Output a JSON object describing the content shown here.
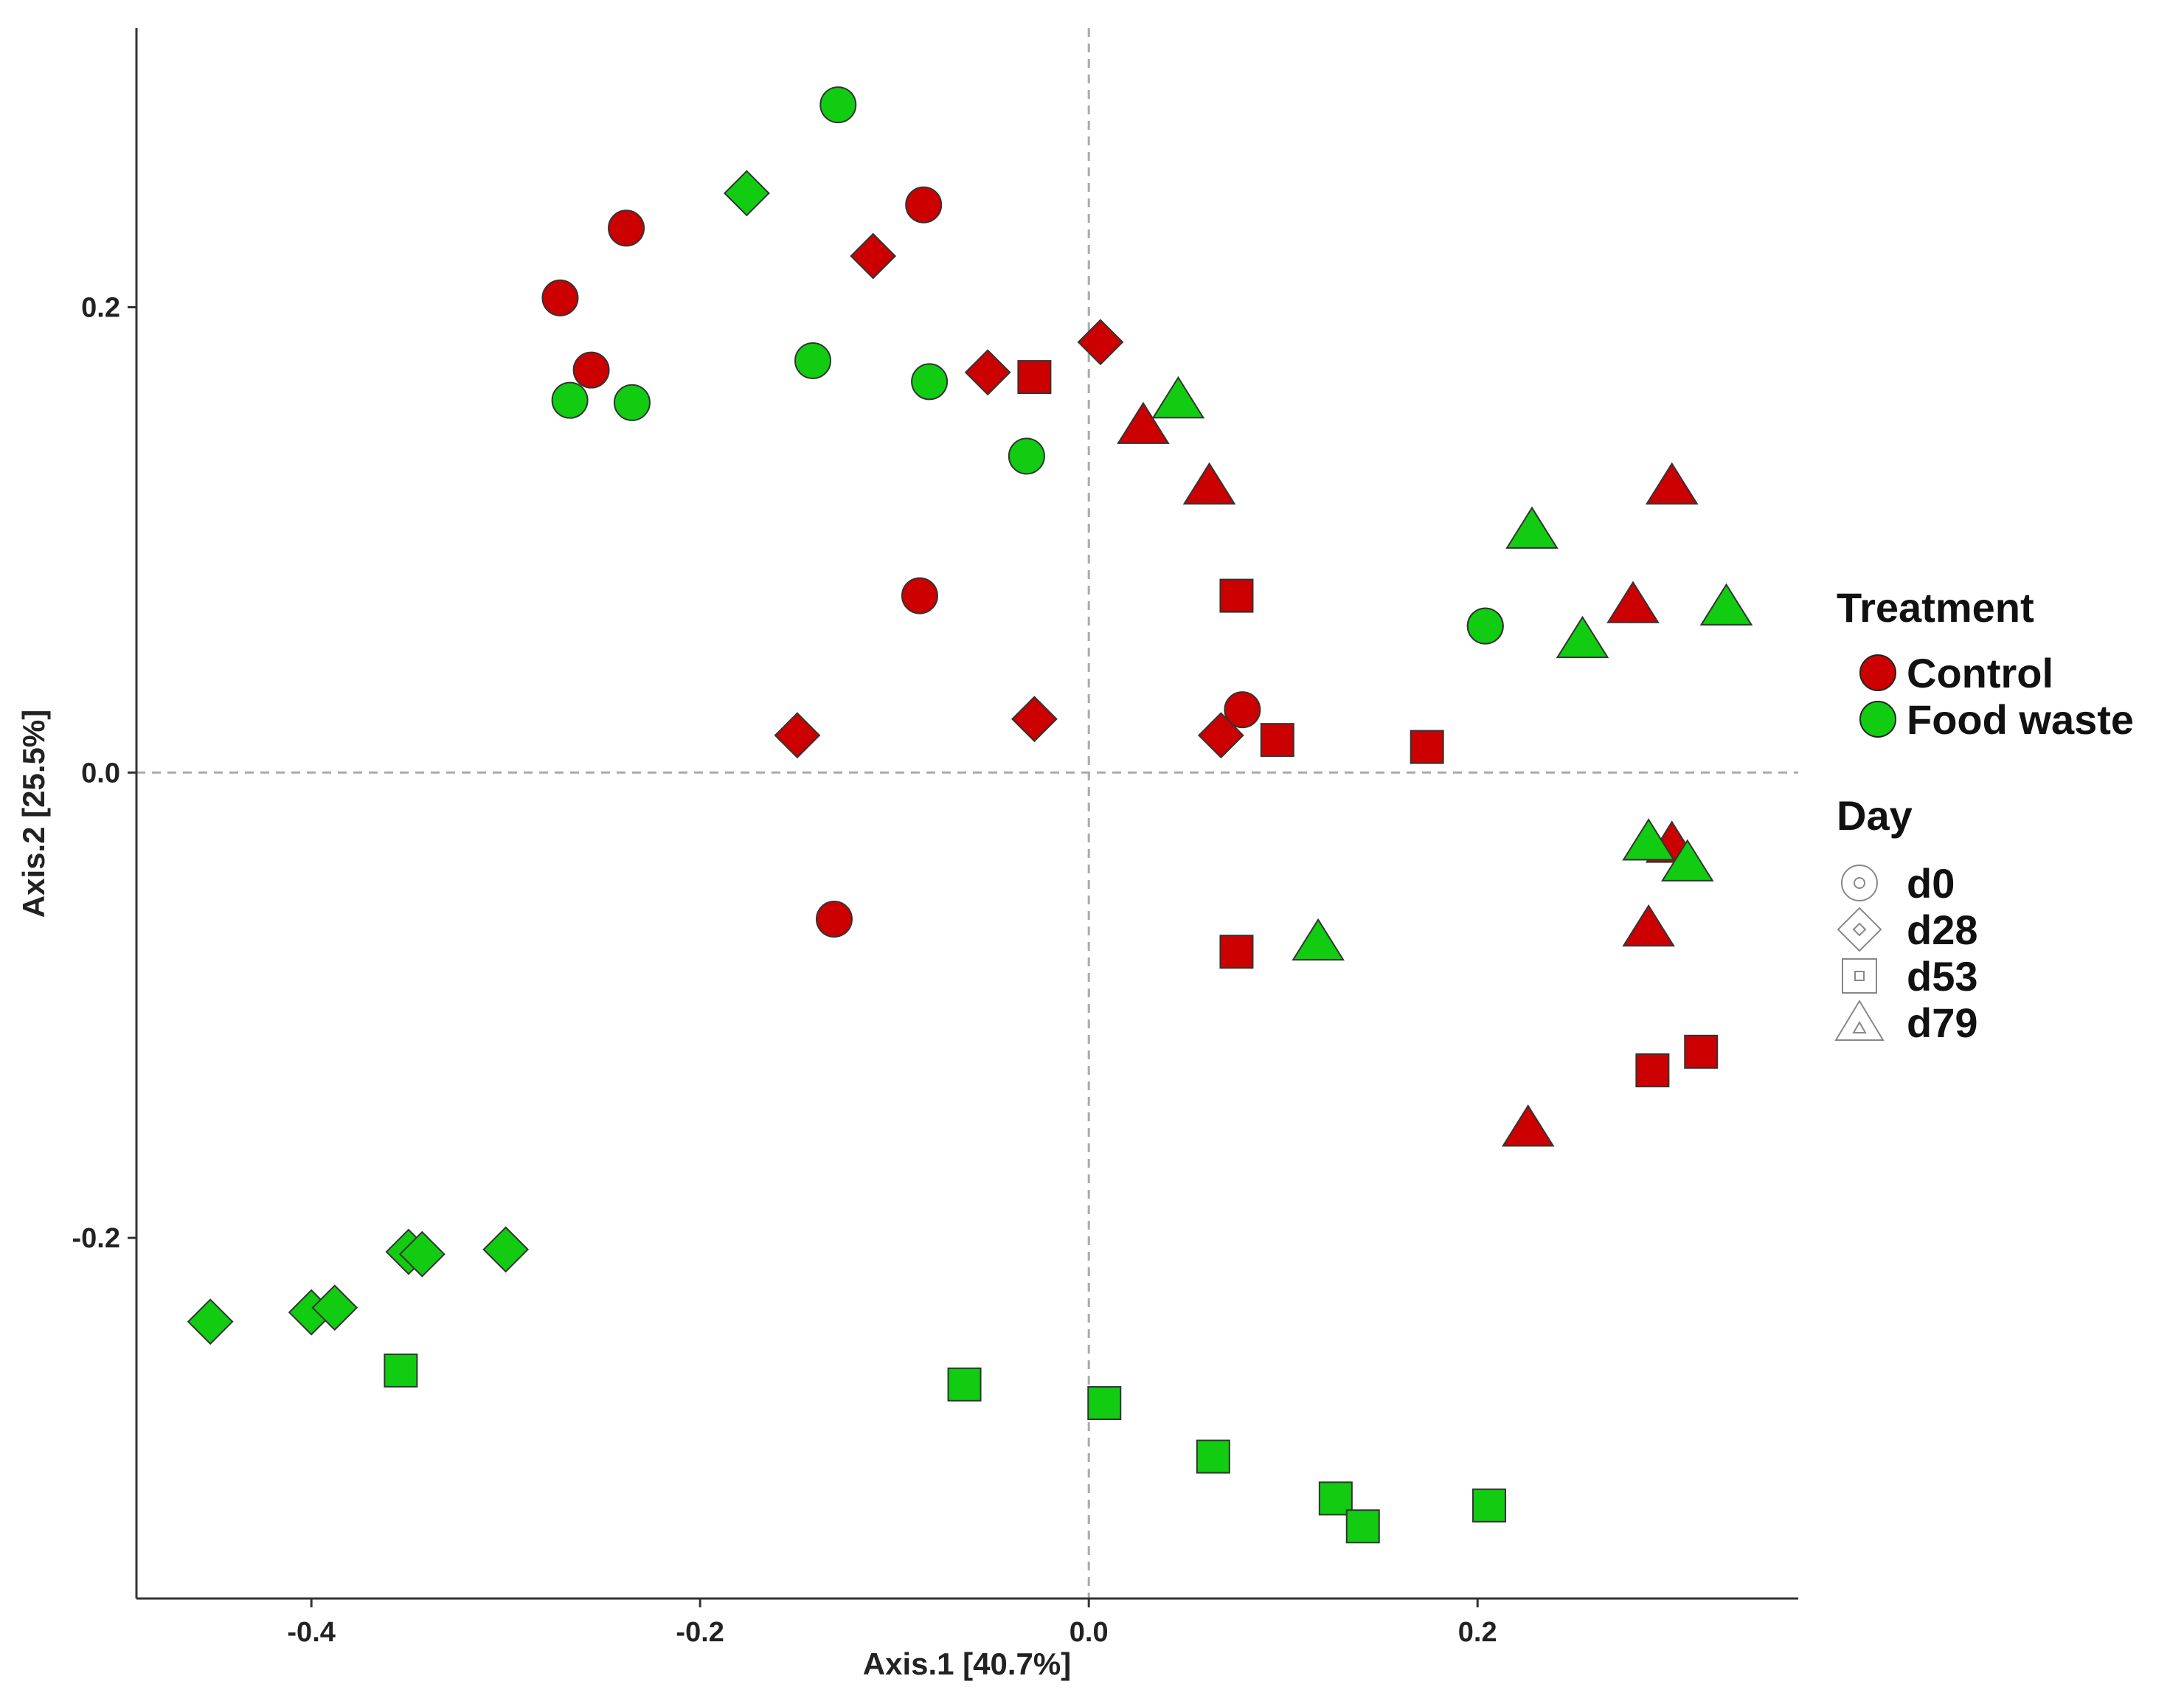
{
  "chart_data": {
    "type": "scatter",
    "title": "",
    "xlabel": "Axis.1   [40.7%]",
    "ylabel": "Axis.2   [25.5%]",
    "xlim": [
      -0.49,
      0.365
    ],
    "ylim": [
      -0.355,
      0.32
    ],
    "xticks": [
      -0.4,
      -0.2,
      0.0,
      0.2
    ],
    "xtick_labels": [
      "-0.4",
      "-0.2",
      "0.0",
      "0.2"
    ],
    "yticks": [
      -0.2,
      0.0,
      0.2
    ],
    "ytick_labels": [
      "-0.2",
      "0.0",
      "0.2"
    ],
    "reference_lines": {
      "x": 0,
      "y": 0,
      "style": "dashed"
    },
    "grid": false,
    "legend": {
      "placement": "right",
      "treatment_title": "Treatment",
      "treatment_items": [
        {
          "label": "Control",
          "color": "#cc0000"
        },
        {
          "label": "Food waste",
          "color": "#11cc11"
        }
      ],
      "day_title": "Day",
      "day_items": [
        {
          "label": "d0",
          "shape": "circle"
        },
        {
          "label": "d28",
          "shape": "diamond"
        },
        {
          "label": "d53",
          "shape": "square"
        },
        {
          "label": "d79",
          "shape": "triangle"
        }
      ]
    },
    "colors": {
      "Control": "#cc0000",
      "Food waste": "#11cc11"
    },
    "series": [
      {
        "treatment": "Control",
        "day": "d0",
        "points": [
          [
            -0.272,
            0.204
          ],
          [
            -0.256,
            0.173
          ],
          [
            -0.238,
            0.234
          ],
          [
            -0.085,
            0.244
          ],
          [
            -0.087,
            0.076
          ],
          [
            -0.131,
            -0.063
          ],
          [
            0.079,
            0.027
          ],
          [
            0.204,
            0.063
          ]
        ]
      },
      {
        "treatment": "Control",
        "day": "d28",
        "points": [
          [
            -0.111,
            0.222
          ],
          [
            -0.052,
            0.172
          ],
          [
            0.006,
            0.185
          ],
          [
            -0.15,
            0.016
          ],
          [
            -0.028,
            0.023
          ],
          [
            0.068,
            0.016
          ]
        ]
      },
      {
        "treatment": "Control",
        "day": "d53",
        "points": [
          [
            -0.028,
            0.17
          ],
          [
            0.076,
            0.076
          ],
          [
            0.097,
            0.014
          ],
          [
            0.174,
            0.011
          ],
          [
            0.076,
            -0.077
          ],
          [
            0.29,
            -0.128
          ],
          [
            0.315,
            -0.12
          ]
        ]
      },
      {
        "treatment": "Control",
        "day": "d79",
        "points": [
          [
            0.028,
            0.148
          ],
          [
            0.062,
            0.122
          ],
          [
            0.3,
            0.122
          ],
          [
            0.28,
            0.071
          ],
          [
            0.3,
            -0.032
          ],
          [
            0.288,
            -0.068
          ],
          [
            0.226,
            -0.154
          ]
        ]
      },
      {
        "treatment": "Food waste",
        "day": "d0",
        "points": [
          [
            -0.129,
            0.287
          ],
          [
            -0.142,
            0.177
          ],
          [
            -0.082,
            0.168
          ],
          [
            -0.032,
            0.136
          ],
          [
            -0.267,
            0.16
          ],
          [
            -0.235,
            0.159
          ],
          [
            0.204,
            0.063
          ]
        ]
      },
      {
        "treatment": "Food waste",
        "day": "d28",
        "points": [
          [
            -0.176,
            0.249
          ],
          [
            -0.452,
            -0.236
          ],
          [
            -0.4,
            -0.232
          ],
          [
            -0.388,
            -0.23
          ],
          [
            -0.35,
            -0.206
          ],
          [
            -0.343,
            -0.207
          ],
          [
            -0.3,
            -0.205
          ]
        ]
      },
      {
        "treatment": "Food waste",
        "day": "d53",
        "points": [
          [
            -0.354,
            -0.257
          ],
          [
            -0.064,
            -0.263
          ],
          [
            0.008,
            -0.271
          ],
          [
            0.064,
            -0.294
          ],
          [
            0.127,
            -0.312
          ],
          [
            0.141,
            -0.324
          ],
          [
            0.206,
            -0.315
          ]
        ]
      },
      {
        "treatment": "Food waste",
        "day": "d79",
        "points": [
          [
            0.046,
            0.159
          ],
          [
            0.228,
            0.103
          ],
          [
            0.254,
            0.056
          ],
          [
            0.328,
            0.07
          ],
          [
            0.288,
            -0.031
          ],
          [
            0.308,
            -0.04
          ],
          [
            0.118,
            -0.074
          ]
        ]
      }
    ]
  }
}
